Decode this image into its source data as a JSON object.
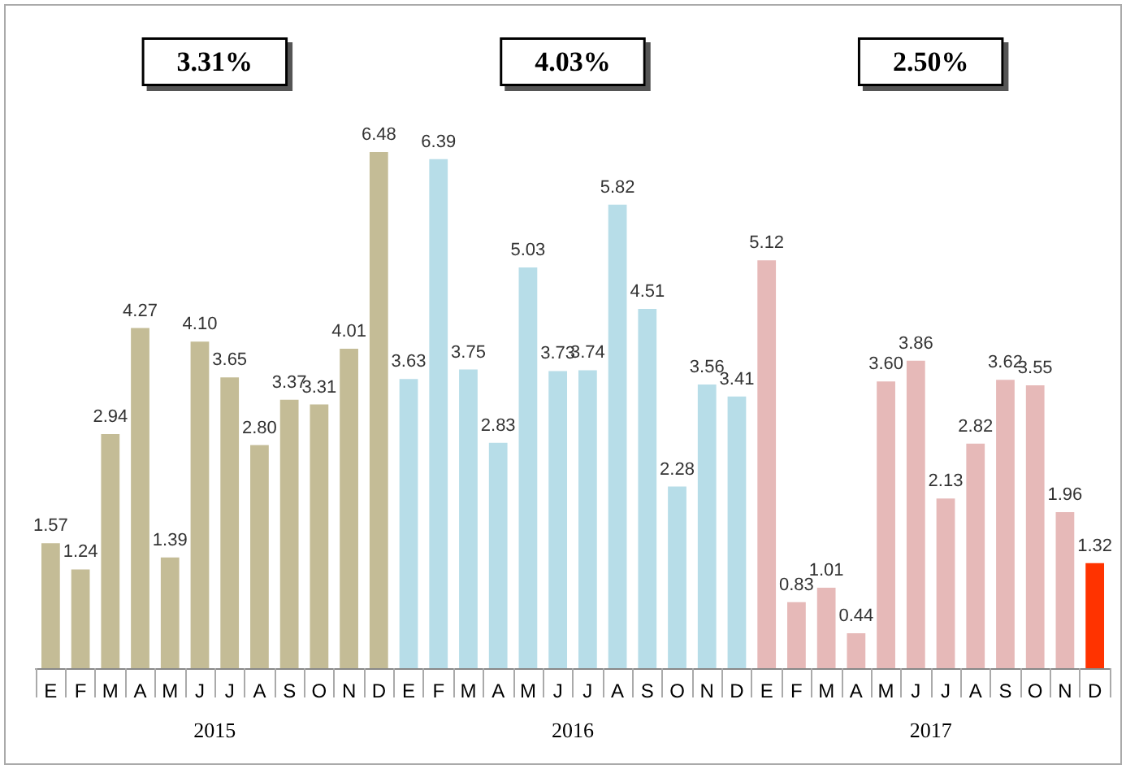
{
  "chart_data": {
    "type": "bar",
    "categories": [
      "E",
      "F",
      "M",
      "A",
      "M",
      "J",
      "J",
      "A",
      "S",
      "O",
      "N",
      "D",
      "E",
      "F",
      "M",
      "A",
      "M",
      "J",
      "J",
      "A",
      "S",
      "O",
      "N",
      "D",
      "E",
      "F",
      "M",
      "A",
      "M",
      "J",
      "J",
      "A",
      "S",
      "O",
      "N",
      "D"
    ],
    "values": [
      1.57,
      1.24,
      2.94,
      4.27,
      1.39,
      4.1,
      3.65,
      2.8,
      3.37,
      3.31,
      4.01,
      6.48,
      3.63,
      6.39,
      3.75,
      2.83,
      5.03,
      3.73,
      3.74,
      5.82,
      4.51,
      2.28,
      3.56,
      3.41,
      5.12,
      0.83,
      1.01,
      0.44,
      3.6,
      3.86,
      2.13,
      2.82,
      3.62,
      3.55,
      1.96,
      1.32
    ],
    "colors": [
      "#c4bc96",
      "#c4bc96",
      "#c4bc96",
      "#c4bc96",
      "#c4bc96",
      "#c4bc96",
      "#c4bc96",
      "#c4bc96",
      "#c4bc96",
      "#c4bc96",
      "#c4bc96",
      "#c4bc96",
      "#b7dde8",
      "#b7dde8",
      "#b7dde8",
      "#b7dde8",
      "#b7dde8",
      "#b7dde8",
      "#b7dde8",
      "#b7dde8",
      "#b7dde8",
      "#b7dde8",
      "#b7dde8",
      "#b7dde8",
      "#e6b9b8",
      "#e6b9b8",
      "#e6b9b8",
      "#e6b9b8",
      "#e6b9b8",
      "#e6b9b8",
      "#e6b9b8",
      "#e6b9b8",
      "#e6b9b8",
      "#e6b9b8",
      "#e6b9b8",
      "#ff3300"
    ],
    "value_labels": [
      "1.57",
      "1.24",
      "2.94",
      "4.27",
      "1.39",
      "4.10",
      "3.65",
      "2.80",
      "3.37",
      "3.31",
      "4.01",
      "6.48",
      "3.63",
      "6.39",
      "3.75",
      "2.83",
      "5.03",
      "3.73",
      "3.74",
      "5.82",
      "4.51",
      "2.28",
      "3.56",
      "3.41",
      "5.12",
      "0.83",
      "1.01",
      "0.44",
      "3.60",
      "3.86",
      "2.13",
      "2.82",
      "3.62",
      "3.55",
      "1.96",
      "1.32"
    ],
    "annotations": [
      "3.31%",
      "4.03%",
      "2.50%",
      "2015",
      "2016",
      "2017"
    ]
  }
}
